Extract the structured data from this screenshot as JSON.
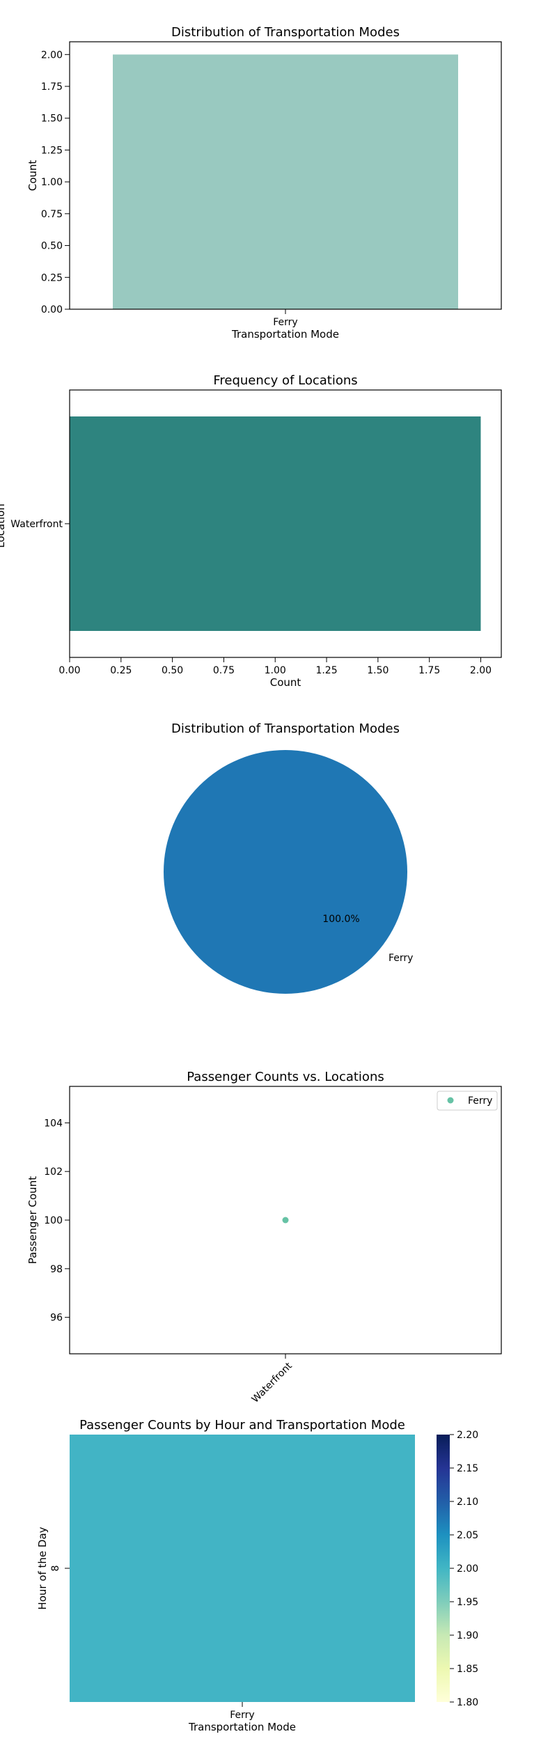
{
  "chart_data": [
    {
      "type": "bar",
      "orientation": "vertical",
      "title": "Distribution of Transportation Modes",
      "xlabel": "Transportation Mode",
      "ylabel": "Count",
      "categories": [
        "Ferry"
      ],
      "values": [
        2
      ],
      "ylim": [
        0,
        2.1
      ],
      "yticks": [
        "0.00",
        "0.25",
        "0.50",
        "0.75",
        "1.00",
        "1.25",
        "1.50",
        "1.75",
        "2.00"
      ],
      "color": "#99c9c0"
    },
    {
      "type": "bar",
      "orientation": "horizontal",
      "title": "Frequency of Locations",
      "xlabel": "Count",
      "ylabel": "Location",
      "categories": [
        "Waterfront"
      ],
      "values": [
        2
      ],
      "xlim": [
        0,
        2.1
      ],
      "xticks": [
        "0.00",
        "0.25",
        "0.50",
        "0.75",
        "1.00",
        "1.25",
        "1.50",
        "1.75",
        "2.00"
      ],
      "color": "#2e847f"
    },
    {
      "type": "pie",
      "title": "Distribution of Transportation Modes",
      "labels": [
        "Ferry"
      ],
      "values": [
        100
      ],
      "pct_labels": [
        "100.0%"
      ],
      "color": "#1f77b4"
    },
    {
      "type": "scatter",
      "title": "Passenger Counts vs. Locations",
      "xlabel": "",
      "ylabel": "Passenger Count",
      "x_categories": [
        "Waterfront"
      ],
      "points": [
        {
          "x": "Waterfront",
          "y": 100,
          "series": "Ferry"
        }
      ],
      "ylim": [
        94.5,
        105.5
      ],
      "yticks": [
        "96",
        "98",
        "100",
        "102",
        "104"
      ],
      "legend": {
        "entries": [
          "Ferry"
        ],
        "placement": "top-right"
      },
      "color": "#66c2a5"
    },
    {
      "type": "heatmap",
      "title": "Passenger Counts by Hour and Transportation Mode",
      "xlabel": "Transportation Mode",
      "ylabel": "Hour of the Day",
      "x_categories": [
        "Ferry"
      ],
      "y_categories": [
        "8"
      ],
      "values": [
        [
          2
        ]
      ],
      "colorbar": {
        "min": 1.8,
        "max": 2.2,
        "ticks": [
          "1.80",
          "1.85",
          "1.90",
          "1.95",
          "2.00",
          "2.05",
          "2.10",
          "2.15",
          "2.20"
        ],
        "colormap": "YlGnBu"
      },
      "cell_color": "#42b4c5"
    }
  ]
}
